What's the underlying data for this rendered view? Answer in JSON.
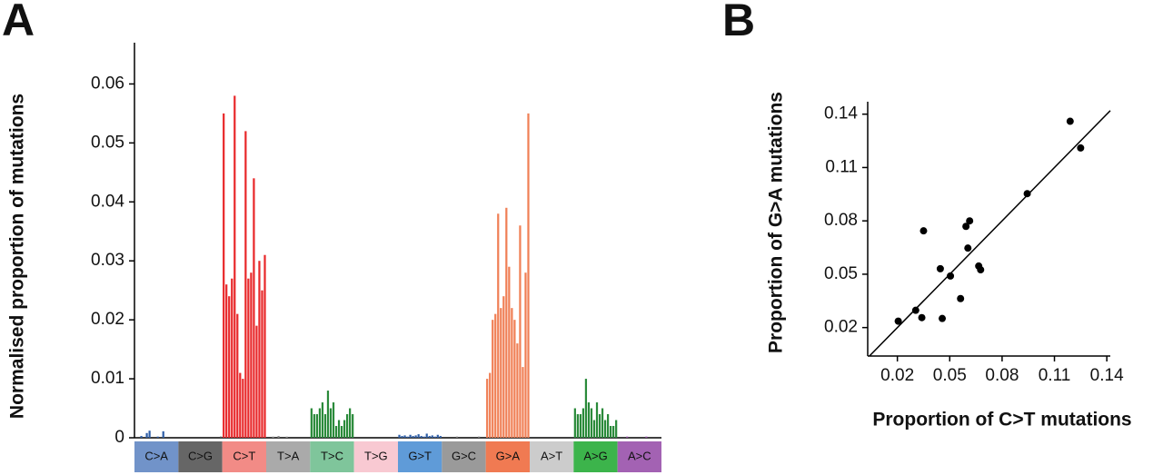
{
  "chart_data": [
    {
      "type": "bar",
      "panel": "A",
      "ylabel": "Normalised proportion of mutations",
      "ylim": [
        0,
        0.067
      ],
      "yticks": [
        0,
        0.01,
        0.02,
        0.03,
        0.04,
        0.05,
        0.06
      ],
      "series": [
        {
          "name": "C>A",
          "color": "#2f5fa8",
          "box_color": "#7193c9",
          "values": [
            0,
            0,
            0.0003,
            0,
            0.0008,
            0.0012,
            0,
            0,
            0.0002,
            0,
            0.0011,
            0,
            0,
            0,
            0,
            0
          ]
        },
        {
          "name": "C>G",
          "color": "#555555",
          "box_color": "#666666",
          "values": [
            0,
            0,
            0,
            0,
            0,
            0,
            0,
            0,
            0,
            0,
            0,
            0,
            0,
            0,
            0,
            0.0002
          ]
        },
        {
          "name": "C>T",
          "color": "#e8282a",
          "box_color": "#f28b86",
          "values": [
            0.055,
            0.026,
            0.024,
            0.027,
            0.058,
            0.021,
            0.011,
            0.01,
            0.052,
            0.027,
            0.028,
            0.044,
            0.019,
            0.03,
            0.025,
            0.031
          ]
        },
        {
          "name": "T>A",
          "color": "#888888",
          "box_color": "#aaaaaa",
          "values": [
            0,
            0,
            0.0002,
            0,
            0.0003,
            0,
            0,
            0.0002,
            0,
            0,
            0,
            0,
            0,
            0,
            0,
            0
          ]
        },
        {
          "name": "T>C",
          "color": "#2a8a3a",
          "box_color": "#7fc59b",
          "values": [
            0.005,
            0.004,
            0.004,
            0.005,
            0.006,
            0.004,
            0.008,
            0.005,
            0.006,
            0.002,
            0.003,
            0.002,
            0.003,
            0.004,
            0.005,
            0.004
          ]
        },
        {
          "name": "T>G",
          "color": "#e8a0b0",
          "box_color": "#f8c9d2",
          "values": [
            0,
            0,
            0,
            0,
            0,
            0,
            0,
            0,
            0,
            0,
            0,
            0,
            0,
            0,
            0,
            0
          ]
        },
        {
          "name": "G>T",
          "color": "#2f5fa8",
          "box_color": "#5f9bd8",
          "values": [
            0.0005,
            0.0003,
            0.0004,
            0.0002,
            0.0005,
            0.0003,
            0.0004,
            0.0006,
            0.0003,
            0.0002,
            0.0007,
            0.0003,
            0.0004,
            0.0002,
            0.0005,
            0.0003
          ]
        },
        {
          "name": "G>C",
          "color": "#777777",
          "box_color": "#9a9a9a",
          "values": [
            0,
            0,
            0,
            0,
            0,
            0.0002,
            0,
            0,
            0,
            0,
            0,
            0,
            0,
            0.0002,
            0,
            0
          ]
        },
        {
          "name": "G>A",
          "color": "#f07f55",
          "box_color": "#f07a52",
          "values": [
            0.01,
            0.011,
            0.02,
            0.021,
            0.038,
            0.022,
            0.024,
            0.039,
            0.029,
            0.022,
            0.02,
            0.016,
            0.036,
            0.012,
            0.028,
            0.055
          ]
        },
        {
          "name": "A>T",
          "color": "#999999",
          "box_color": "#cccccc",
          "values": [
            0,
            0,
            0,
            0,
            0,
            0,
            0,
            0,
            0,
            0,
            0,
            0,
            0,
            0,
            0,
            0
          ]
        },
        {
          "name": "A>G",
          "color": "#2a8a3a",
          "box_color": "#3cb44b",
          "values": [
            0.005,
            0.004,
            0.004,
            0.005,
            0.01,
            0.006,
            0.005,
            0.003,
            0.006,
            0.004,
            0.005,
            0.003,
            0.004,
            0.002,
            0.002,
            0.003
          ]
        },
        {
          "name": "A>C",
          "color": "#8e4aa0",
          "box_color": "#a362b3",
          "values": [
            0,
            0,
            0,
            0.0002,
            0,
            0,
            0,
            0,
            0,
            0,
            0.0002,
            0,
            0,
            0,
            0,
            0
          ]
        }
      ]
    },
    {
      "type": "scatter",
      "panel": "B",
      "xlabel": "Proportion of C>T mutations",
      "ylabel": "Proportion of G>A mutations",
      "color": "#000000",
      "xlim": [
        0.003,
        0.142
      ],
      "ylim": [
        0.004,
        0.147
      ],
      "xticks": [
        0.02,
        0.05,
        0.08,
        0.11,
        0.14
      ],
      "yticks": [
        0.02,
        0.05,
        0.08,
        0.11,
        0.14
      ],
      "x": [
        0.0205,
        0.0305,
        0.034,
        0.035,
        0.0446,
        0.0457,
        0.0504,
        0.0562,
        0.0593,
        0.0614,
        0.0604,
        0.0666,
        0.0677,
        0.0944,
        0.119,
        0.125
      ],
      "values": [
        0.0236,
        0.0297,
        0.0256,
        0.0744,
        0.0531,
        0.0251,
        0.049,
        0.0363,
        0.0769,
        0.08,
        0.0647,
        0.0546,
        0.0525,
        0.0953,
        0.136,
        0.121
      ]
    }
  ]
}
